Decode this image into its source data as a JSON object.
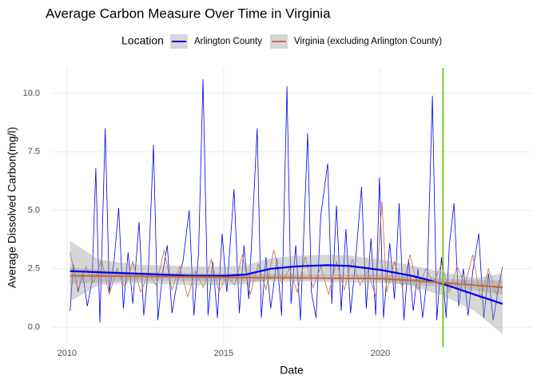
{
  "chart_data": {
    "type": "line",
    "title": "Average Carbon Measure Over Time in Virginia",
    "x_label": "Date",
    "y_label": "Average Dissolved Carbon(mg/l)",
    "legend_title": "Location",
    "xlim": [
      2009.52,
      2024.82
    ],
    "ylim": [
      -0.85,
      11.09
    ],
    "xticks": [
      2010,
      2015,
      2020
    ],
    "yticks": [
      {
        "value": 0,
        "label": "0.0"
      },
      {
        "value": 2.5,
        "label": "2.5"
      },
      {
        "value": 5,
        "label": "5.0"
      },
      {
        "value": 7.5,
        "label": "7.5"
      },
      {
        "value": 10,
        "label": "10.0"
      }
    ],
    "grid": true,
    "vline": 2022,
    "vline_color": "#7dc72a",
    "band_color": "#999999",
    "series": [
      {
        "name": "Arlington County",
        "color": "#0000ee",
        "x": [
          2010.1,
          2010.2,
          2010.35,
          2010.5,
          2010.65,
          2010.8,
          2010.92,
          2011.05,
          2011.22,
          2011.35,
          2011.5,
          2011.65,
          2011.8,
          2011.95,
          2012.1,
          2012.3,
          2012.45,
          2012.6,
          2012.76,
          2012.9,
          2013.05,
          2013.2,
          2013.35,
          2013.5,
          2013.7,
          2013.9,
          2014.05,
          2014.2,
          2014.34,
          2014.5,
          2014.65,
          2014.8,
          2014.95,
          2015.1,
          2015.33,
          2015.5,
          2015.65,
          2015.8,
          2016.07,
          2016.2,
          2016.35,
          2016.5,
          2016.7,
          2016.85,
          2017.02,
          2017.15,
          2017.3,
          2017.45,
          2017.68,
          2017.8,
          2017.95,
          2018.1,
          2018.32,
          2018.45,
          2018.6,
          2018.75,
          2018.9,
          2019.05,
          2019.2,
          2019.4,
          2019.55,
          2019.7,
          2019.85,
          2019.97,
          2020.1,
          2020.3,
          2020.45,
          2020.6,
          2020.75,
          2020.9,
          2021.05,
          2021.2,
          2021.35,
          2021.5,
          2021.66,
          2021.8,
          2021.95,
          2022.1,
          2022.2,
          2022.35,
          2022.5,
          2022.65,
          2022.8,
          2022.95,
          2023.14,
          2023.3,
          2023.45,
          2023.6,
          2023.75,
          2023.9
        ],
        "values": [
          0.7,
          2.7,
          1.5,
          2.3,
          0.9,
          2.0,
          6.8,
          0.2,
          8.5,
          1.5,
          2.8,
          5.1,
          0.8,
          3.2,
          1.0,
          4.5,
          0.5,
          2.5,
          7.8,
          0.3,
          2.3,
          3.5,
          0.6,
          1.8,
          2.8,
          5.0,
          0.5,
          3.2,
          10.6,
          0.5,
          2.8,
          0.4,
          4.0,
          1.5,
          5.9,
          0.6,
          3.5,
          1.2,
          8.5,
          0.4,
          3.0,
          0.8,
          2.9,
          0.5,
          10.3,
          1.0,
          3.5,
          0.3,
          8.3,
          1.5,
          0.4,
          4.8,
          7.0,
          1.0,
          5.2,
          0.7,
          4.2,
          0.6,
          2.7,
          6.0,
          0.8,
          3.8,
          0.5,
          6.4,
          0.4,
          3.6,
          1.2,
          5.3,
          0.3,
          2.9,
          0.7,
          2.5,
          0.4,
          2.2,
          9.9,
          0.3,
          3.0,
          0.4,
          3.5,
          5.3,
          0.9,
          2.5,
          0.5,
          2.4,
          4.0,
          0.4,
          2.3,
          0.3,
          1.5,
          2.6
        ],
        "smooth": {
          "x": [
            2010.1,
            2011,
            2012,
            2013,
            2014,
            2015,
            2015.7,
            2016.5,
            2017.3,
            2018.3,
            2019,
            2020,
            2021,
            2022,
            2023,
            2023.9
          ],
          "values": [
            2.4,
            2.35,
            2.3,
            2.25,
            2.2,
            2.2,
            2.25,
            2.5,
            2.6,
            2.65,
            2.62,
            2.45,
            2.2,
            1.85,
            1.4,
            1.0
          ],
          "lower": [
            1.1,
            1.8,
            1.9,
            1.85,
            1.8,
            1.8,
            1.85,
            2.05,
            2.15,
            2.2,
            2.17,
            2.0,
            1.75,
            1.35,
            0.7,
            -0.3
          ],
          "upper": [
            3.7,
            2.9,
            2.7,
            2.65,
            2.6,
            2.6,
            2.65,
            2.95,
            3.05,
            3.1,
            3.07,
            2.9,
            2.65,
            2.35,
            2.1,
            2.3
          ]
        }
      },
      {
        "name": "Virginia (excluding Arlington County)",
        "color": "#c86a3f",
        "x": [
          2010.1,
          2010.35,
          2010.6,
          2010.85,
          2011.1,
          2011.35,
          2011.6,
          2011.85,
          2012.1,
          2012.35,
          2012.6,
          2012.85,
          2013.1,
          2013.35,
          2013.6,
          2013.85,
          2014.1,
          2014.35,
          2014.6,
          2014.85,
          2015.1,
          2015.35,
          2015.6,
          2015.85,
          2016.1,
          2016.35,
          2016.6,
          2016.85,
          2017.1,
          2017.35,
          2017.6,
          2017.85,
          2018.1,
          2018.35,
          2018.6,
          2018.85,
          2019.1,
          2019.35,
          2019.6,
          2019.85,
          2020.05,
          2020.2,
          2020.45,
          2020.7,
          2020.95,
          2021.2,
          2021.45,
          2021.7,
          2021.95,
          2022.2,
          2022.45,
          2022.7,
          2022.95,
          2023.2,
          2023.45,
          2023.7,
          2023.9
        ],
        "values": [
          3.2,
          1.6,
          2.6,
          1.9,
          2.9,
          1.4,
          2.5,
          1.7,
          2.8,
          1.5,
          2.3,
          1.8,
          3.3,
          1.6,
          2.6,
          1.3,
          2.4,
          1.7,
          2.9,
          1.5,
          2.2,
          1.8,
          3.1,
          1.4,
          2.7,
          1.6,
          3.3,
          1.9,
          2.5,
          1.5,
          3.0,
          1.7,
          2.6,
          1.4,
          2.8,
          1.6,
          2.9,
          1.8,
          2.4,
          1.3,
          5.4,
          1.5,
          2.8,
          1.7,
          3.1,
          1.6,
          2.5,
          1.9,
          2.7,
          1.5,
          2.6,
          1.8,
          3.1,
          1.2,
          2.5,
          1.4,
          2.6
        ],
        "smooth": {
          "x": [
            2010.1,
            2012,
            2014,
            2016,
            2018,
            2020,
            2021,
            2022,
            2023,
            2023.9
          ],
          "values": [
            2.2,
            2.18,
            2.15,
            2.12,
            2.1,
            2.08,
            2.0,
            1.9,
            1.8,
            1.7
          ],
          "lower": [
            1.85,
            2.0,
            1.98,
            1.96,
            1.94,
            1.9,
            1.82,
            1.72,
            1.58,
            1.4
          ],
          "upper": [
            2.55,
            2.36,
            2.32,
            2.28,
            2.26,
            2.26,
            2.18,
            2.08,
            2.02,
            2.0
          ]
        }
      }
    ]
  }
}
